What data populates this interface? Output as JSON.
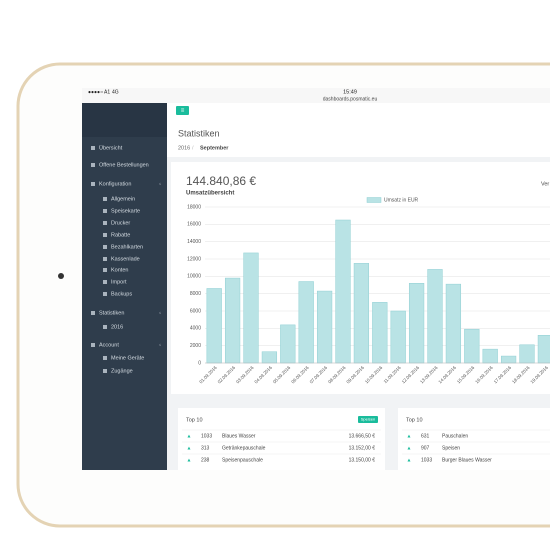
{
  "status_bar": {
    "carrier": "A1",
    "network": "4G",
    "time": "15:49",
    "url": "dashboards.posmatic.eu"
  },
  "sidebar": [
    {
      "label": "Übersicht",
      "level": 0
    },
    {
      "label": "Offene Bestellungen",
      "level": 0
    },
    {
      "label": "Konfiguration",
      "level": 0,
      "expandable": true
    },
    {
      "label": "Allgemein",
      "level": 1
    },
    {
      "label": "Speisekarte",
      "level": 1
    },
    {
      "label": "Drucker",
      "level": 1
    },
    {
      "label": "Rabatte",
      "level": 1
    },
    {
      "label": "Bezahlkarten",
      "level": 1
    },
    {
      "label": "Kassenlade",
      "level": 1
    },
    {
      "label": "Konten",
      "level": 1
    },
    {
      "label": "Import",
      "level": 1
    },
    {
      "label": "Backups",
      "level": 1
    },
    {
      "label": "Statistiken",
      "level": 0,
      "expandable": true
    },
    {
      "label": "2016",
      "level": 1
    },
    {
      "label": "Account",
      "level": 0,
      "expandable": true
    },
    {
      "label": "Meine Geräte",
      "level": 1
    },
    {
      "label": "Zugänge",
      "level": 1
    }
  ],
  "page": {
    "title": "Statistiken",
    "breadcrumb": [
      "2016",
      "September"
    ]
  },
  "summary": {
    "total": "144.840,86 €",
    "subtitle": "Umsatzübersicht",
    "cut_label": "Ver"
  },
  "chart_data": {
    "type": "bar",
    "categories": [
      "01.09.2016",
      "02.09.2016",
      "03.09.2016",
      "04.09.2016",
      "05.09.2016",
      "06.09.2016",
      "07.09.2016",
      "08.09.2016",
      "09.09.2016",
      "10.09.2016",
      "11.09.2016",
      "12.09.2016",
      "13.09.2016",
      "14.09.2016",
      "15.09.2016",
      "16.09.2016",
      "17.09.2016",
      "18.09.2016",
      "19.09.2016"
    ],
    "series": [
      {
        "name": "Umsatz in EUR",
        "color": "#b9e3e5",
        "values": [
          8600,
          9800,
          12700,
          1300,
          4400,
          9400,
          8300,
          16500,
          11500,
          7000,
          6000,
          9200,
          10800,
          9100,
          3900,
          1600,
          800,
          2100,
          3200
        ]
      }
    ],
    "ylim": [
      0,
      18000
    ],
    "yticks": [
      0,
      2000,
      4000,
      6000,
      8000,
      10000,
      12000,
      14000,
      16000,
      18000
    ],
    "grid": true
  },
  "tables": [
    {
      "title": "Top 10",
      "badge": "Speisen",
      "rows": [
        [
          "1033",
          "Blaues Wasser",
          "13.666,50 €"
        ],
        [
          "313",
          "Getränkepauschale",
          "13.152,00 €"
        ],
        [
          "238",
          "Speisenpauschale",
          "13.150,00 €"
        ]
      ]
    },
    {
      "title": "Top 10",
      "rows": [
        [
          "631",
          "Pauschalen"
        ],
        [
          "907",
          "Speisen"
        ],
        [
          "1033",
          "Burger Blaues Wasser"
        ]
      ]
    }
  ]
}
